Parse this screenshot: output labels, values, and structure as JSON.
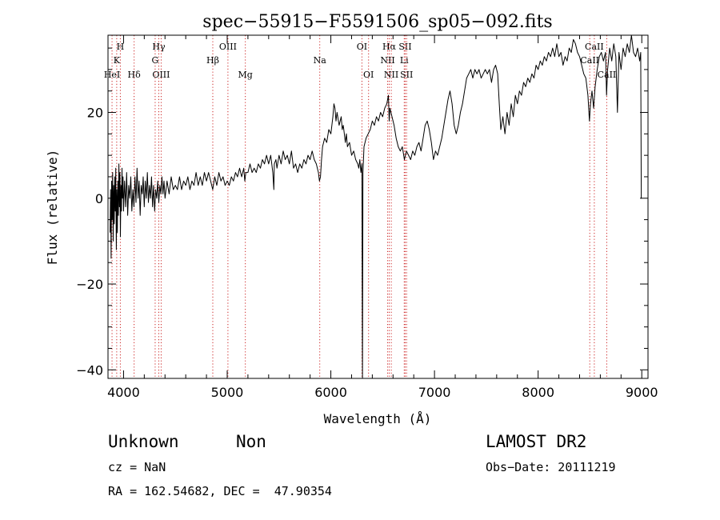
{
  "chart_data": {
    "type": "line",
    "title": "spec−55915−F5591506_sp05−092.fits",
    "xlabel": "Wavelength (Å)",
    "ylabel": "Flux (relative)",
    "xlim": [
      3850,
      9060
    ],
    "ylim": [
      -42,
      38
    ],
    "x_ticks": [
      4000,
      5000,
      6000,
      7000,
      8000,
      9000
    ],
    "y_ticks": [
      -40,
      -20,
      0,
      20
    ],
    "y_tick_labels": [
      "−40",
      "−20",
      "0",
      "20"
    ],
    "line_color": "#000000",
    "marker_color": "#cc2222",
    "lines": [
      {
        "name": "H",
        "x": 3969,
        "row": 1
      },
      {
        "name": "K",
        "x": 3934,
        "row": 2
      },
      {
        "name": "HeI",
        "x": 3889,
        "row": 3
      },
      {
        "name": "Hδ",
        "x": 4102,
        "row": 3
      },
      {
        "name": "Hγ",
        "x": 4340,
        "row": 1
      },
      {
        "name": "G",
        "x": 4305,
        "row": 2
      },
      {
        "name": "OIII",
        "x": 4363,
        "row": 3
      },
      {
        "name": "OIII",
        "x": 5007,
        "row": 1
      },
      {
        "name": "Hβ",
        "x": 4861,
        "row": 2
      },
      {
        "name": "Mg",
        "x": 5175,
        "row": 3
      },
      {
        "name": "Na",
        "x": 5893,
        "row": 2
      },
      {
        "name": "OI",
        "x": 6300,
        "row": 1
      },
      {
        "name": "OI",
        "x": 6364,
        "row": 3
      },
      {
        "name": "Hα",
        "x": 6563,
        "row": 1
      },
      {
        "name": "SII",
        "x": 6717,
        "row": 1
      },
      {
        "name": "NII",
        "x": 6548,
        "row": 2
      },
      {
        "name": "Li",
        "x": 6708,
        "row": 2
      },
      {
        "name": "NII",
        "x": 6583,
        "row": 3
      },
      {
        "name": "SII",
        "x": 6731,
        "row": 3
      },
      {
        "name": "CaII",
        "x": 8542,
        "row": 1
      },
      {
        "name": "CaII",
        "x": 8498,
        "row": 2
      },
      {
        "name": "CaII",
        "x": 8662,
        "row": 3
      }
    ],
    "spectrum": [
      [
        3870,
        -8
      ],
      [
        3875,
        2
      ],
      [
        3880,
        -14
      ],
      [
        3885,
        4
      ],
      [
        3890,
        -5
      ],
      [
        3895,
        6
      ],
      [
        3900,
        -10
      ],
      [
        3905,
        3
      ],
      [
        3910,
        -6
      ],
      [
        3915,
        5
      ],
      [
        3920,
        -3
      ],
      [
        3925,
        7
      ],
      [
        3930,
        -12
      ],
      [
        3935,
        2
      ],
      [
        3940,
        -8
      ],
      [
        3945,
        4
      ],
      [
        3950,
        -4
      ],
      [
        3955,
        8
      ],
      [
        3960,
        -2
      ],
      [
        3965,
        6
      ],
      [
        3970,
        -9
      ],
      [
        3975,
        3
      ],
      [
        3980,
        -3
      ],
      [
        3985,
        7
      ],
      [
        3990,
        0
      ],
      [
        3995,
        5
      ],
      [
        4000,
        -3
      ],
      [
        4010,
        4
      ],
      [
        4020,
        -2
      ],
      [
        4030,
        6
      ],
      [
        4040,
        -4
      ],
      [
        4050,
        3
      ],
      [
        4060,
        0
      ],
      [
        4070,
        5
      ],
      [
        4080,
        -3
      ],
      [
        4090,
        2
      ],
      [
        4100,
        -2
      ],
      [
        4110,
        5
      ],
      [
        4120,
        -1
      ],
      [
        4130,
        7
      ],
      [
        4140,
        0
      ],
      [
        4150,
        4
      ],
      [
        4160,
        -4
      ],
      [
        4170,
        3
      ],
      [
        4180,
        1
      ],
      [
        4190,
        5
      ],
      [
        4200,
        -2
      ],
      [
        4210,
        4
      ],
      [
        4220,
        0
      ],
      [
        4230,
        6
      ],
      [
        4240,
        -1
      ],
      [
        4250,
        3
      ],
      [
        4260,
        0
      ],
      [
        4270,
        5
      ],
      [
        4280,
        -2
      ],
      [
        4290,
        3
      ],
      [
        4300,
        -3
      ],
      [
        4310,
        2
      ],
      [
        4320,
        0
      ],
      [
        4330,
        4
      ],
      [
        4340,
        -1
      ],
      [
        4350,
        3
      ],
      [
        4360,
        1
      ],
      [
        4370,
        5
      ],
      [
        4380,
        1
      ],
      [
        4390,
        4
      ],
      [
        4400,
        0
      ],
      [
        4420,
        4
      ],
      [
        4440,
        1
      ],
      [
        4460,
        5
      ],
      [
        4480,
        2
      ],
      [
        4500,
        3
      ],
      [
        4520,
        2
      ],
      [
        4540,
        5
      ],
      [
        4560,
        2
      ],
      [
        4580,
        4
      ],
      [
        4600,
        3
      ],
      [
        4620,
        5
      ],
      [
        4640,
        2
      ],
      [
        4660,
        4
      ],
      [
        4680,
        3
      ],
      [
        4700,
        6
      ],
      [
        4720,
        3
      ],
      [
        4740,
        5
      ],
      [
        4760,
        3
      ],
      [
        4780,
        6
      ],
      [
        4800,
        4
      ],
      [
        4820,
        6
      ],
      [
        4840,
        4
      ],
      [
        4860,
        2
      ],
      [
        4880,
        5
      ],
      [
        4900,
        3
      ],
      [
        4920,
        6
      ],
      [
        4940,
        4
      ],
      [
        4960,
        5
      ],
      [
        4980,
        3
      ],
      [
        5000,
        4
      ],
      [
        5020,
        3
      ],
      [
        5040,
        5
      ],
      [
        5060,
        4
      ],
      [
        5080,
        6
      ],
      [
        5100,
        5
      ],
      [
        5120,
        7
      ],
      [
        5140,
        5
      ],
      [
        5160,
        7
      ],
      [
        5170,
        4
      ],
      [
        5180,
        6
      ],
      [
        5200,
        6
      ],
      [
        5220,
        8
      ],
      [
        5240,
        6
      ],
      [
        5260,
        7
      ],
      [
        5280,
        6
      ],
      [
        5300,
        8
      ],
      [
        5320,
        7
      ],
      [
        5340,
        9
      ],
      [
        5360,
        8
      ],
      [
        5380,
        10
      ],
      [
        5400,
        8
      ],
      [
        5420,
        10
      ],
      [
        5440,
        6
      ],
      [
        5450,
        2
      ],
      [
        5455,
        8
      ],
      [
        5470,
        9
      ],
      [
        5480,
        7
      ],
      [
        5500,
        10
      ],
      [
        5520,
        8
      ],
      [
        5540,
        11
      ],
      [
        5560,
        9
      ],
      [
        5580,
        10
      ],
      [
        5600,
        8
      ],
      [
        5620,
        11
      ],
      [
        5640,
        7
      ],
      [
        5660,
        8
      ],
      [
        5680,
        6
      ],
      [
        5700,
        8
      ],
      [
        5720,
        7
      ],
      [
        5740,
        9
      ],
      [
        5760,
        8
      ],
      [
        5780,
        10
      ],
      [
        5800,
        9
      ],
      [
        5820,
        11
      ],
      [
        5840,
        9
      ],
      [
        5860,
        8
      ],
      [
        5880,
        6
      ],
      [
        5890,
        4
      ],
      [
        5900,
        5
      ],
      [
        5910,
        9
      ],
      [
        5920,
        12
      ],
      [
        5940,
        14
      ],
      [
        5960,
        13
      ],
      [
        5980,
        16
      ],
      [
        6000,
        15
      ],
      [
        6020,
        19
      ],
      [
        6030,
        22
      ],
      [
        6040,
        21
      ],
      [
        6050,
        18
      ],
      [
        6060,
        20
      ],
      [
        6080,
        17
      ],
      [
        6100,
        19
      ],
      [
        6110,
        16
      ],
      [
        6120,
        17
      ],
      [
        6140,
        13
      ],
      [
        6150,
        15
      ],
      [
        6160,
        12
      ],
      [
        6180,
        13
      ],
      [
        6200,
        10
      ],
      [
        6220,
        11
      ],
      [
        6240,
        9
      ],
      [
        6260,
        8
      ],
      [
        6270,
        7
      ],
      [
        6280,
        9
      ],
      [
        6290,
        6
      ],
      [
        6300,
        8
      ],
      [
        6305,
        -42
      ],
      [
        6310,
        6
      ],
      [
        6320,
        12
      ],
      [
        6340,
        14
      ],
      [
        6360,
        15
      ],
      [
        6380,
        16
      ],
      [
        6400,
        18
      ],
      [
        6420,
        17
      ],
      [
        6440,
        19
      ],
      [
        6460,
        18
      ],
      [
        6480,
        20
      ],
      [
        6500,
        19
      ],
      [
        6520,
        21
      ],
      [
        6540,
        22
      ],
      [
        6555,
        24
      ],
      [
        6563,
        18
      ],
      [
        6570,
        21
      ],
      [
        6590,
        19
      ],
      [
        6610,
        17
      ],
      [
        6630,
        14
      ],
      [
        6650,
        12
      ],
      [
        6670,
        11
      ],
      [
        6690,
        12
      ],
      [
        6710,
        9
      ],
      [
        6730,
        11
      ],
      [
        6750,
        10
      ],
      [
        6770,
        9
      ],
      [
        6790,
        11
      ],
      [
        6810,
        10
      ],
      [
        6830,
        12
      ],
      [
        6850,
        13
      ],
      [
        6870,
        11
      ],
      [
        6890,
        14
      ],
      [
        6910,
        17
      ],
      [
        6930,
        18
      ],
      [
        6950,
        16
      ],
      [
        6970,
        13
      ],
      [
        6990,
        9
      ],
      [
        7010,
        11
      ],
      [
        7030,
        10
      ],
      [
        7050,
        12
      ],
      [
        7070,
        14
      ],
      [
        7090,
        17
      ],
      [
        7110,
        20
      ],
      [
        7130,
        23
      ],
      [
        7150,
        25
      ],
      [
        7170,
        22
      ],
      [
        7190,
        17
      ],
      [
        7210,
        15
      ],
      [
        7230,
        17
      ],
      [
        7250,
        20
      ],
      [
        7270,
        22
      ],
      [
        7290,
        25
      ],
      [
        7310,
        28
      ],
      [
        7330,
        29
      ],
      [
        7350,
        30
      ],
      [
        7370,
        28
      ],
      [
        7390,
        30
      ],
      [
        7410,
        29
      ],
      [
        7430,
        30
      ],
      [
        7450,
        28
      ],
      [
        7470,
        29
      ],
      [
        7490,
        30
      ],
      [
        7510,
        29
      ],
      [
        7530,
        30
      ],
      [
        7550,
        27
      ],
      [
        7570,
        30
      ],
      [
        7590,
        31
      ],
      [
        7610,
        29
      ],
      [
        7625,
        22
      ],
      [
        7640,
        16
      ],
      [
        7660,
        19
      ],
      [
        7680,
        15
      ],
      [
        7700,
        20
      ],
      [
        7720,
        17
      ],
      [
        7740,
        22
      ],
      [
        7760,
        19
      ],
      [
        7780,
        24
      ],
      [
        7800,
        22
      ],
      [
        7820,
        25
      ],
      [
        7840,
        24
      ],
      [
        7860,
        27
      ],
      [
        7880,
        26
      ],
      [
        7900,
        28
      ],
      [
        7920,
        27
      ],
      [
        7940,
        29
      ],
      [
        7960,
        28
      ],
      [
        7980,
        31
      ],
      [
        8000,
        30
      ],
      [
        8020,
        32
      ],
      [
        8040,
        31
      ],
      [
        8060,
        33
      ],
      [
        8080,
        32
      ],
      [
        8100,
        34
      ],
      [
        8120,
        33
      ],
      [
        8140,
        35
      ],
      [
        8160,
        33
      ],
      [
        8180,
        36
      ],
      [
        8200,
        33
      ],
      [
        8220,
        34
      ],
      [
        8240,
        31
      ],
      [
        8260,
        33
      ],
      [
        8280,
        32
      ],
      [
        8300,
        35
      ],
      [
        8320,
        34
      ],
      [
        8340,
        37
      ],
      [
        8360,
        36
      ],
      [
        8380,
        34
      ],
      [
        8400,
        33
      ],
      [
        8420,
        31
      ],
      [
        8440,
        29
      ],
      [
        8460,
        28
      ],
      [
        8480,
        24
      ],
      [
        8495,
        18
      ],
      [
        8505,
        22
      ],
      [
        8520,
        25
      ],
      [
        8535,
        21
      ],
      [
        8550,
        26
      ],
      [
        8570,
        30
      ],
      [
        8590,
        33
      ],
      [
        8610,
        34
      ],
      [
        8630,
        32
      ],
      [
        8650,
        34
      ],
      [
        8660,
        24
      ],
      [
        8670,
        30
      ],
      [
        8690,
        35
      ],
      [
        8710,
        32
      ],
      [
        8730,
        36
      ],
      [
        8750,
        33
      ],
      [
        8765,
        20
      ],
      [
        8780,
        34
      ],
      [
        8800,
        30
      ],
      [
        8820,
        35
      ],
      [
        8840,
        33
      ],
      [
        8860,
        36
      ],
      [
        8880,
        34
      ],
      [
        8900,
        38
      ],
      [
        8920,
        34
      ],
      [
        8940,
        33
      ],
      [
        8960,
        35
      ],
      [
        8980,
        32
      ],
      [
        8990,
        34
      ],
      [
        8995,
        0
      ],
      [
        9000,
        0
      ]
    ]
  },
  "footer": {
    "object_class": "Unknown",
    "object_subclass": "Non",
    "cz_line": "cz = NaN",
    "coords_line": "RA = 162.54682, DEC =  47.90354",
    "survey": "LAMOST DR2",
    "obs_date": "Obs−Date: 20111219"
  }
}
